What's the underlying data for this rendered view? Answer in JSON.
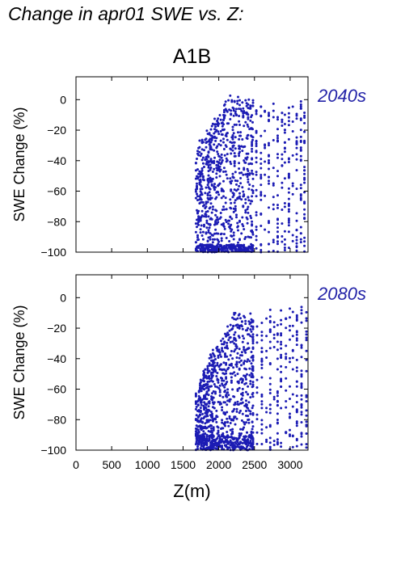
{
  "figure": {
    "title": "Change in apr01 SWE vs. Z:",
    "scenario": "A1B"
  },
  "chart_data": [
    {
      "type": "scatter",
      "panel_label": "2040s",
      "ylabel": "SWE Change (%)",
      "xlabel": "",
      "xlim": [
        0,
        3250
      ],
      "ylim": [
        -100,
        15
      ],
      "xticks": [
        0,
        500,
        1000,
        1500,
        2000,
        2500,
        3000
      ],
      "yticks": [
        0,
        -20,
        -40,
        -60,
        -80,
        -100
      ],
      "yticklabels": [
        "0",
        "−20",
        "−40",
        "−60",
        "−80",
        "−100"
      ],
      "grid": false,
      "marker_color": "#1c1cb4",
      "x_range": [
        1680,
        3230
      ],
      "y_min_by_elevation": [
        [
          1680,
          -100
        ],
        [
          3230,
          -100
        ]
      ],
      "y_max_by_elevation": [
        [
          1680,
          -30
        ],
        [
          1900,
          -15
        ],
        [
          2050,
          -5
        ],
        [
          2150,
          3
        ],
        [
          2300,
          3
        ],
        [
          2450,
          0
        ],
        [
          2700,
          0
        ],
        [
          3230,
          0
        ]
      ],
      "dense_band": [
        -100,
        -95
      ]
    },
    {
      "type": "scatter",
      "panel_label": "2080s",
      "ylabel": "SWE Change (%)",
      "xlabel": "Z(m)",
      "xlim": [
        0,
        3250
      ],
      "ylim": [
        -100,
        15
      ],
      "xticks": [
        0,
        500,
        1000,
        1500,
        2000,
        2500,
        3000
      ],
      "xticklabels": [
        "0",
        "500",
        "1000",
        "1500",
        "2000",
        "2500",
        "3000"
      ],
      "yticks": [
        0,
        -20,
        -40,
        -60,
        -80,
        -100
      ],
      "yticklabels": [
        "0",
        "−20",
        "−40",
        "−60",
        "−80",
        "−100"
      ],
      "grid": false,
      "marker_color": "#1c1cb4",
      "x_range": [
        1680,
        3230
      ],
      "y_min_by_elevation": [
        [
          1680,
          -100
        ],
        [
          3230,
          -100
        ]
      ],
      "y_max_by_elevation": [
        [
          1680,
          -60
        ],
        [
          1900,
          -35
        ],
        [
          2100,
          -20
        ],
        [
          2200,
          -10
        ],
        [
          2500,
          -10
        ],
        [
          2700,
          -7
        ],
        [
          3230,
          -6
        ]
      ],
      "dense_band": [
        -100,
        -90
      ]
    }
  ]
}
